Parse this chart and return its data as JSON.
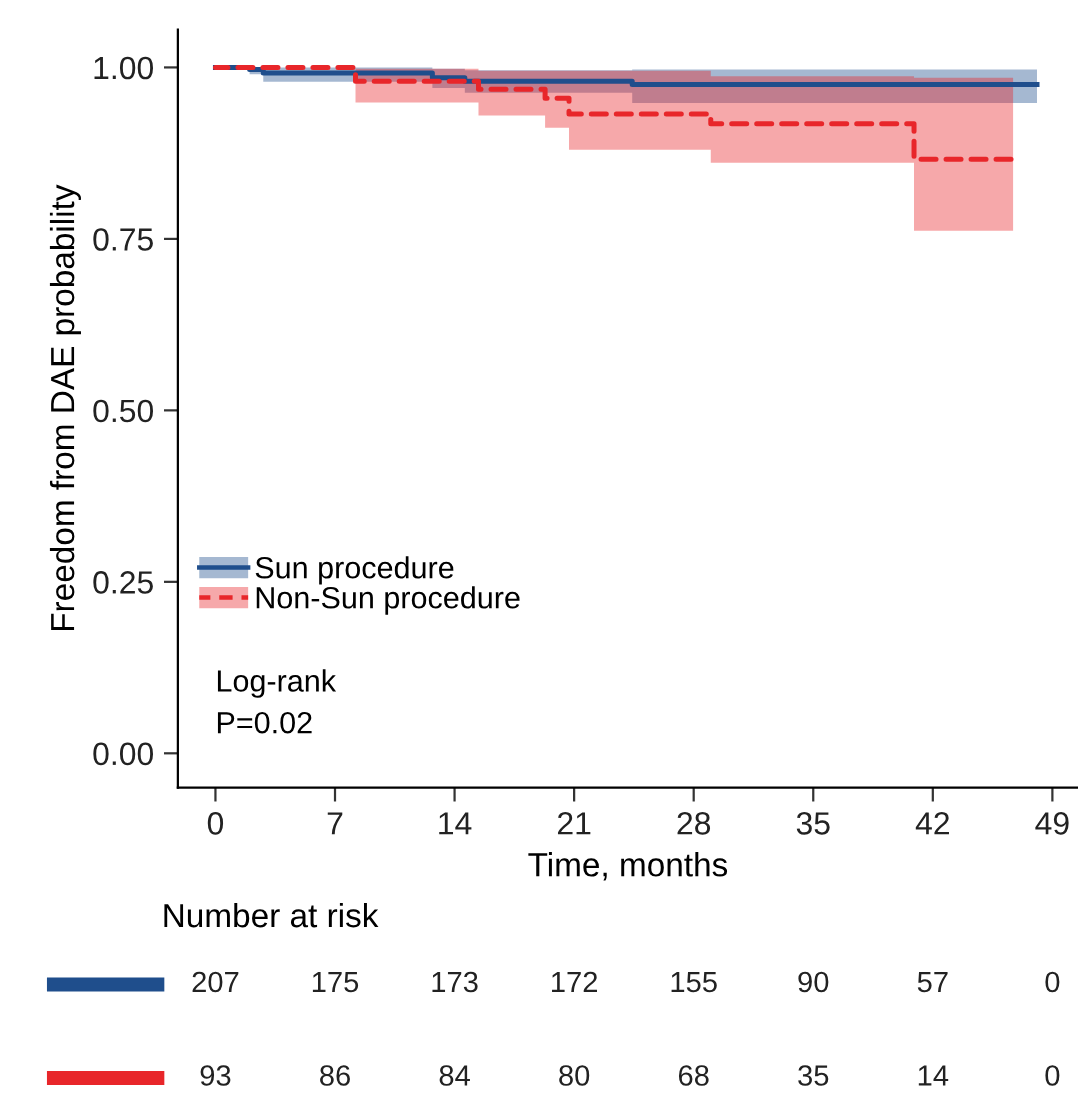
{
  "chart_data": {
    "type": "step",
    "xlabel": "Time, months",
    "ylabel": "Freedom from DAE probability",
    "xlim": [
      -2.2,
      50.5
    ],
    "ylim": [
      -0.05,
      1.055
    ],
    "xticks": [
      0,
      7,
      14,
      21,
      28,
      35,
      42,
      49
    ],
    "yticks": [
      {
        "value": 0,
        "label": "0.00"
      },
      {
        "value": 0.25,
        "label": "0.25"
      },
      {
        "value": 0.5,
        "label": "0.50"
      },
      {
        "value": 0.75,
        "label": "0.75"
      },
      {
        "value": 1,
        "label": "1.00"
      }
    ],
    "legend": "bottom left",
    "grid": false,
    "series": [
      {
        "name": "Sun procedure",
        "color": "#1f4e8c",
        "line_style": "solid",
        "x": [
          0,
          2.0,
          2.8,
          12.7,
          14.6,
          24.4,
          48.1
        ],
        "values": [
          1.0,
          0.997,
          0.992,
          0.985,
          0.98,
          0.975,
          0.975
        ],
        "lower": [
          1.0,
          0.99,
          0.979,
          0.97,
          0.963,
          0.948,
          0.948
        ],
        "upper": [
          1.0,
          1.0,
          1.0,
          0.998,
          0.996,
          0.997,
          0.997
        ]
      },
      {
        "name": "Non-Sun procedure",
        "color": "#e8262a",
        "line_style": "dashed",
        "x": [
          0,
          8.2,
          15.4,
          19.3,
          20.7,
          29.0,
          40.9,
          46.7
        ],
        "values": [
          1.0,
          0.98,
          0.968,
          0.955,
          0.932,
          0.918,
          0.866,
          0.866
        ],
        "lower": [
          1.0,
          0.949,
          0.93,
          0.912,
          0.88,
          0.861,
          0.762,
          0.762
        ],
        "upper": [
          1.0,
          0.998,
          0.995,
          0.995,
          0.995,
          0.987,
          0.985,
          0.985
        ]
      }
    ],
    "annotations": [
      "Log-rank\nP=0.02",
      "Number at risk",
      "207 175 173 172 155 90 57 0",
      "93 86 84 80 68 35 14 0"
    ]
  }
}
